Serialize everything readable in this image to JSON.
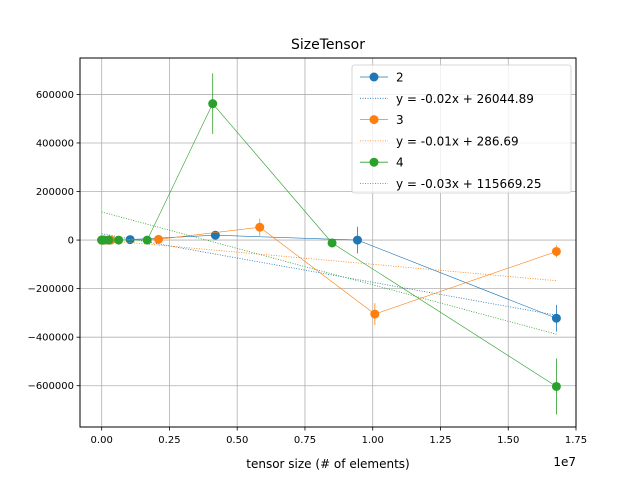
{
  "chart_data": {
    "type": "line",
    "title": "SizeTensor",
    "xlabel": "tensor size (# of elements)",
    "ylabel": "",
    "x_offset_label": "1e7",
    "xlim": [
      -800000,
      17500000
    ],
    "ylim": [
      -770000,
      750000
    ],
    "grid": true,
    "legend_position": "top-right",
    "x_ticks": [
      {
        "value": 0,
        "label": "0.00"
      },
      {
        "value": 2500000,
        "label": "0.25"
      },
      {
        "value": 5000000,
        "label": "0.50"
      },
      {
        "value": 7500000,
        "label": "0.75"
      },
      {
        "value": 10000000,
        "label": "1.00"
      },
      {
        "value": 12500000,
        "label": "1.25"
      },
      {
        "value": 15000000,
        "label": "1.50"
      },
      {
        "value": 17500000,
        "label": "1.75"
      }
    ],
    "y_ticks": [
      {
        "value": -600000,
        "label": "−600000"
      },
      {
        "value": -400000,
        "label": "−400000"
      },
      {
        "value": -200000,
        "label": "−200000"
      },
      {
        "value": 0,
        "label": "0"
      },
      {
        "value": 200000,
        "label": "200000"
      },
      {
        "value": 400000,
        "label": "400000"
      },
      {
        "value": 600000,
        "label": "600000"
      }
    ],
    "series": [
      {
        "name": "2",
        "color": "#1f77b4",
        "x": [
          1000,
          4000,
          16000,
          65000,
          262000,
          1049000,
          4194000,
          9437000,
          16777000
        ],
        "y": [
          0,
          0,
          0,
          0,
          0,
          2000,
          20000,
          0,
          -322000
        ],
        "err": [
          2000,
          2000,
          2000,
          2000,
          3000,
          5000,
          10000,
          55000,
          55000
        ],
        "fit": {
          "label": "y = -0.02x + 26044.89",
          "slope": -0.02,
          "intercept": 26044.89
        }
      },
      {
        "name": "3",
        "color": "#ff7f0e",
        "x": [
          1000,
          8000,
          27000,
          64000,
          125000,
          343000,
          2097000,
          5832000,
          10078000,
          16777000
        ],
        "y": [
          0,
          0,
          0,
          0,
          0,
          0,
          3000,
          53000,
          -305000,
          -47000
        ],
        "err": [
          2000,
          2000,
          2000,
          2000,
          2000,
          3000,
          8000,
          35000,
          45000,
          25000
        ],
        "fit": {
          "label": "y = -0.01x + 286.69",
          "slope": -0.01,
          "intercept": 286.69
        }
      },
      {
        "name": "4",
        "color": "#2ca02c",
        "x": [
          1000,
          16000,
          81000,
          256000,
          625000,
          1679000,
          4096000,
          8500000,
          16777000
        ],
        "y": [
          0,
          0,
          0,
          0,
          0,
          0,
          562000,
          -12000,
          -603000
        ],
        "err": [
          2000,
          2000,
          2000,
          2000,
          3000,
          5000,
          125000,
          15000,
          115000
        ],
        "fit": {
          "label": "y = -0.03x + 115669.25",
          "slope": -0.03,
          "intercept": 115669.25
        }
      }
    ]
  }
}
